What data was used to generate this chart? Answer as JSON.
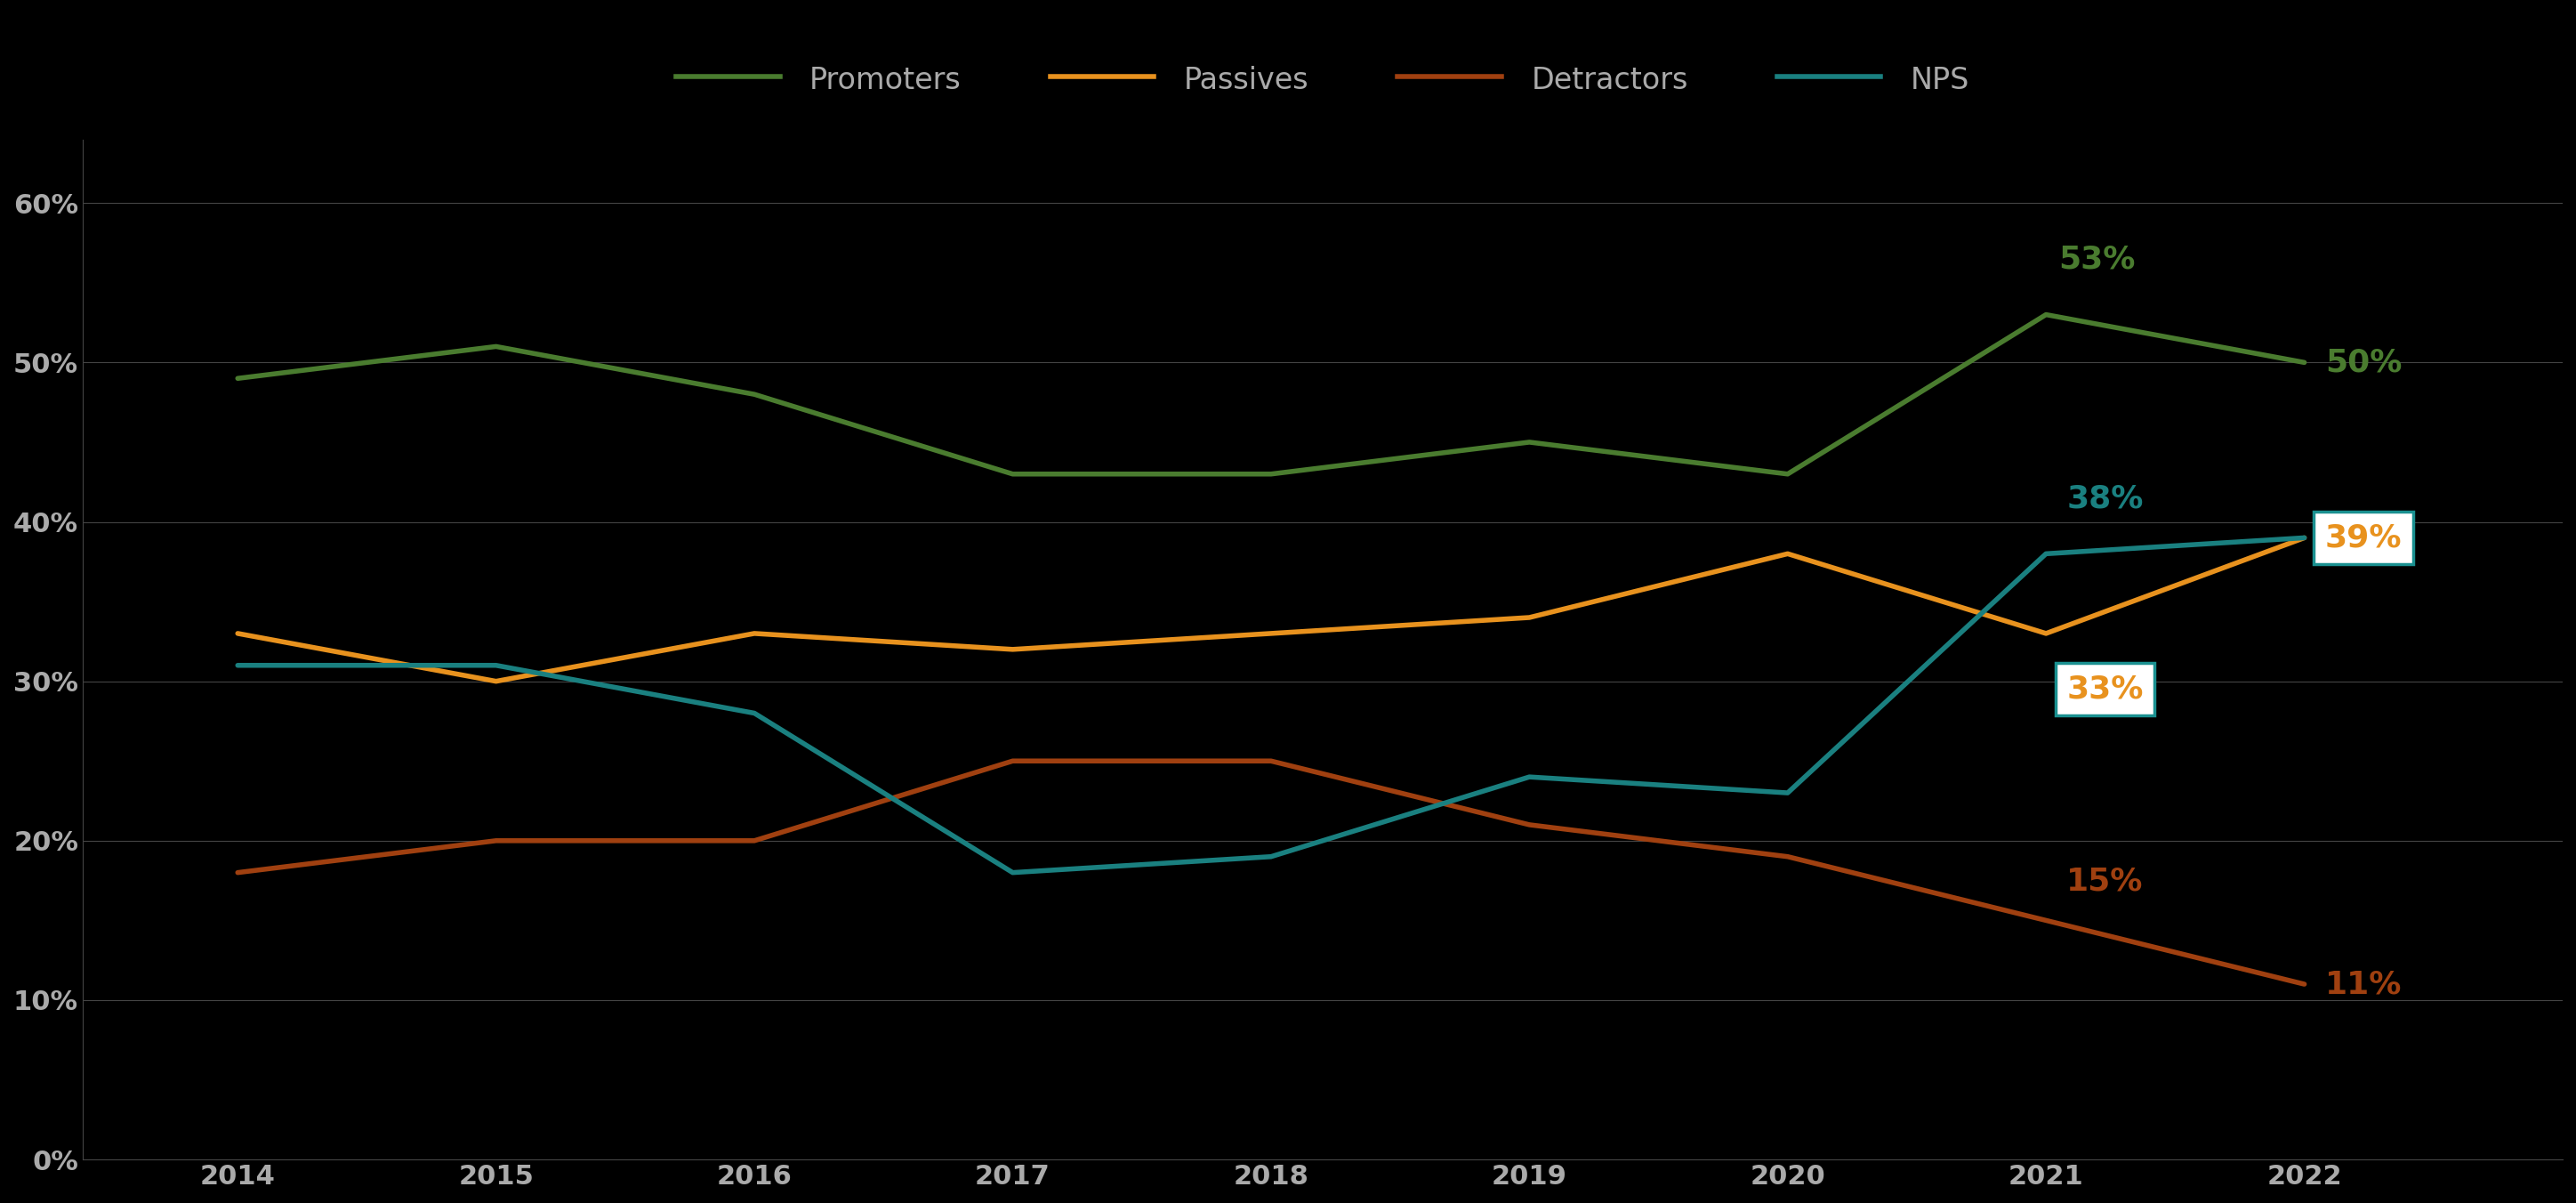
{
  "years": [
    2014,
    2015,
    2016,
    2017,
    2018,
    2019,
    2020,
    2021,
    2022
  ],
  "promoters": [
    49,
    51,
    48,
    43,
    43,
    45,
    43,
    53,
    50
  ],
  "passives": [
    33,
    30,
    33,
    32,
    33,
    34,
    38,
    33,
    39
  ],
  "detractors": [
    18,
    20,
    20,
    25,
    25,
    21,
    19,
    15,
    11
  ],
  "nps": [
    31,
    31,
    28,
    18,
    19,
    24,
    23,
    38,
    39
  ],
  "promoters_color": "#4a7c2f",
  "passives_color": "#e8921e",
  "detractors_color": "#a04010",
  "nps_color": "#1a8080",
  "background_color": "#000000",
  "grid_color": "#444444",
  "text_color": "#aaaaaa",
  "line_width": 4.0,
  "ylim": [
    0,
    64
  ],
  "yticks": [
    0,
    10,
    20,
    30,
    40,
    50,
    60
  ],
  "ytick_labels": [
    "0%",
    "10%",
    "20%",
    "30%",
    "40%",
    "50%",
    "60%"
  ],
  "box_bg": "#ffffff",
  "box_edge": "#1a9090",
  "annot_fs": 26,
  "legend_fs": 24
}
